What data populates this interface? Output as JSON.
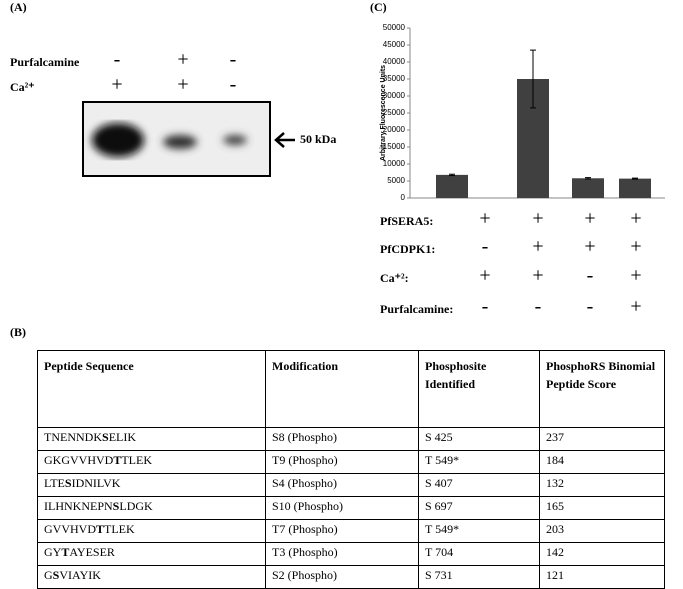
{
  "panel_a": {
    "label": "(A)",
    "rows": [
      {
        "name": "Purfalcamine",
        "signs": [
          "-",
          "+",
          "-"
        ]
      },
      {
        "name": "Ca²⁺",
        "signs": [
          "+",
          "+",
          "-"
        ]
      }
    ],
    "marker": "50 kDa"
  },
  "panel_c": {
    "label": "(C)",
    "conditions": [
      {
        "name": "PfSERA5:",
        "signs": [
          "+",
          "+",
          "+",
          "+"
        ]
      },
      {
        "name": "PfCDPK1:",
        "signs": [
          "-",
          "+",
          "+",
          "+"
        ]
      },
      {
        "name": "Ca⁺²:",
        "signs": [
          "+",
          "+",
          "-",
          "+"
        ]
      },
      {
        "name": "Purfalcamine:",
        "signs": [
          "-",
          "-",
          "-",
          "+"
        ]
      }
    ]
  },
  "chart_data": {
    "type": "bar",
    "ylabel": "Arbitrary Fluorescence Units",
    "categories": [
      null,
      null,
      null,
      null
    ],
    "values": [
      6800,
      35000,
      5800,
      5700
    ],
    "errors": [
      200,
      8500,
      200,
      150
    ],
    "color": "#404040",
    "ylim": [
      0,
      50000
    ],
    "yticks": [
      0,
      5000,
      10000,
      15000,
      20000,
      25000,
      30000,
      35000,
      40000,
      45000,
      50000
    ]
  },
  "panel_b": {
    "label": "(B)",
    "table": {
      "header": [
        "Peptide Sequence",
        "Modification",
        "Phosphosite Identified",
        "PhosphoRS Binomial Peptide Score"
      ],
      "rows": [
        [
          "TNENNDKSELIK",
          "S8 (Phospho)",
          "S 425",
          "237"
        ],
        [
          "GKGVVHVDTTLEK",
          "T9 (Phospho)",
          "T 549*",
          "184"
        ],
        [
          "LTESIDNILVK",
          "S4 (Phospho)",
          "S 407",
          "132"
        ],
        [
          "ILHNKNEPNSLDGK",
          "S10 (Phospho)",
          "S 697",
          "165"
        ],
        [
          "GVVHVDTTLEK",
          "T7 (Phospho)",
          "T 549*",
          "203"
        ],
        [
          "GYTAYESER",
          "T3 (Phospho)",
          "T 704",
          "142"
        ],
        [
          "GSVIAYIK",
          "S2 (Phospho)",
          "S 731",
          "121"
        ]
      ]
    }
  }
}
